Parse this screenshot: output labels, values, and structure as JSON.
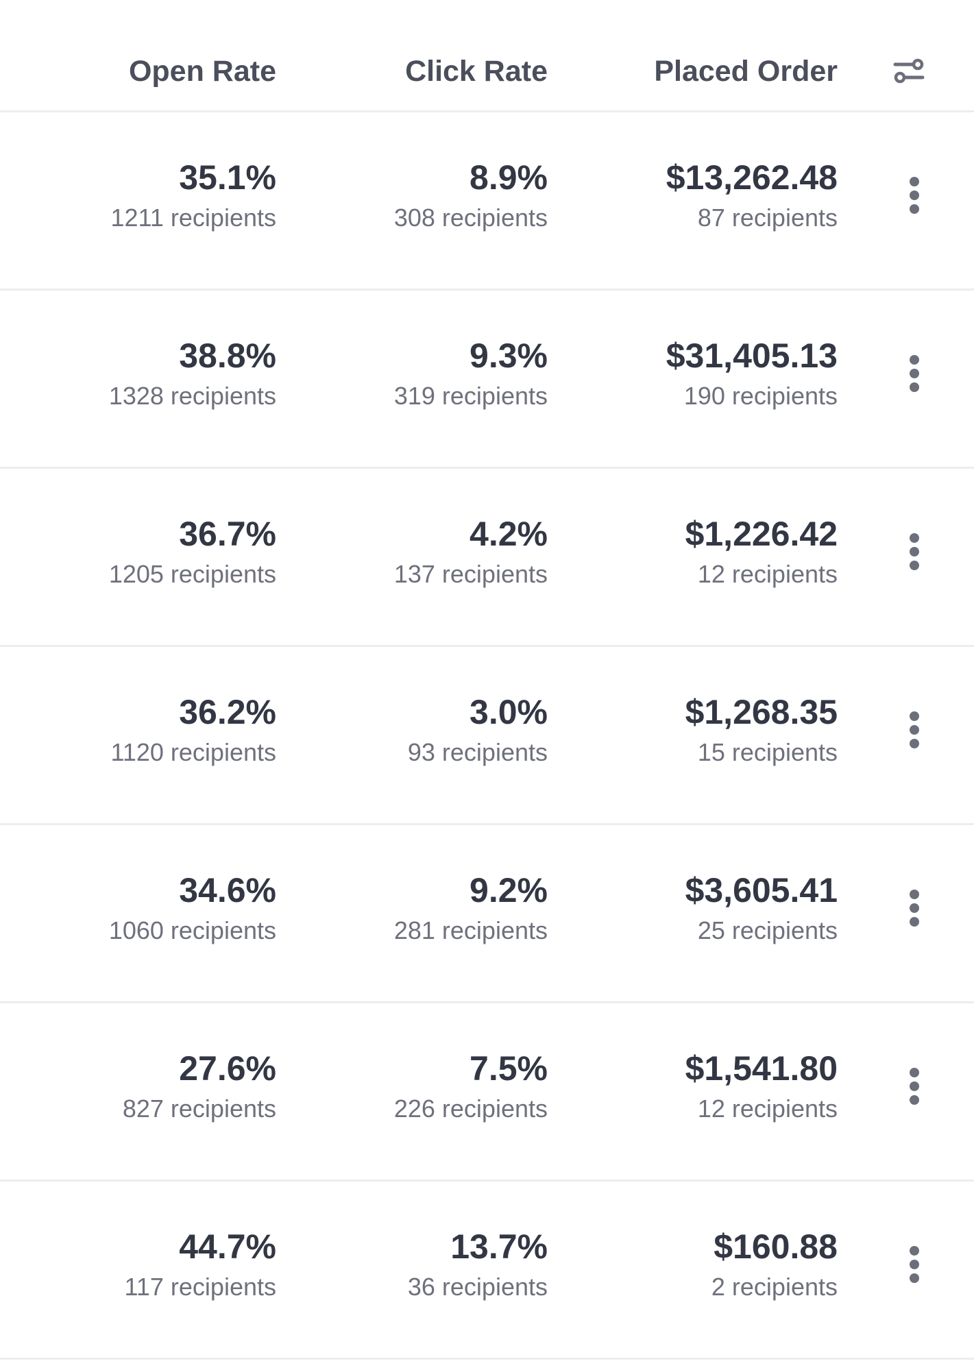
{
  "header": {
    "open_rate": "Open Rate",
    "click_rate": "Click Rate",
    "placed_order": "Placed Order",
    "filter_icon": "sliders-icon"
  },
  "rows": [
    {
      "open_rate": "35.1%",
      "open_recipients": "1211 recipients",
      "click_rate": "8.9%",
      "click_recipients": "308 recipients",
      "placed_order": "$13,262.48",
      "order_recipients": "87 recipients"
    },
    {
      "open_rate": "38.8%",
      "open_recipients": "1328 recipients",
      "click_rate": "9.3%",
      "click_recipients": "319 recipients",
      "placed_order": "$31,405.13",
      "order_recipients": "190 recipients"
    },
    {
      "open_rate": "36.7%",
      "open_recipients": "1205 recipients",
      "click_rate": "4.2%",
      "click_recipients": "137 recipients",
      "placed_order": "$1,226.42",
      "order_recipients": "12 recipients"
    },
    {
      "open_rate": "36.2%",
      "open_recipients": "1120 recipients",
      "click_rate": "3.0%",
      "click_recipients": "93 recipients",
      "placed_order": "$1,268.35",
      "order_recipients": "15 recipients"
    },
    {
      "open_rate": "34.6%",
      "open_recipients": "1060 recipients",
      "click_rate": "9.2%",
      "click_recipients": "281 recipients",
      "placed_order": "$3,605.41",
      "order_recipients": "25 recipients"
    },
    {
      "open_rate": "27.6%",
      "open_recipients": "827 recipients",
      "click_rate": "7.5%",
      "click_recipients": "226 recipients",
      "placed_order": "$1,541.80",
      "order_recipients": "12 recipients"
    },
    {
      "open_rate": "44.7%",
      "open_recipients": "117 recipients",
      "click_rate": "13.7%",
      "click_recipients": "36 recipients",
      "placed_order": "$160.88",
      "order_recipients": "2 recipients"
    }
  ],
  "row_menu_icon": "kebab-menu-icon"
}
